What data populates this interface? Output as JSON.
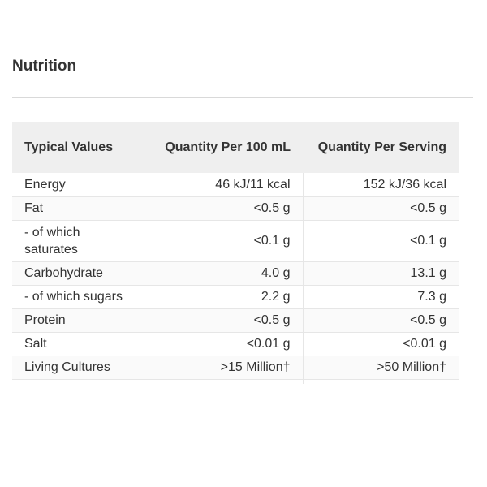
{
  "section": {
    "title": "Nutrition"
  },
  "table": {
    "headers": [
      "Typical Values",
      "Quantity Per 100 mL",
      "Quantity Per Serving"
    ],
    "rows": [
      {
        "name": "Energy",
        "per100": "46 kJ/11 kcal",
        "perServing": "152 kJ/36 kcal"
      },
      {
        "name": "Fat",
        "per100": "<0.5 g",
        "perServing": "<0.5 g"
      },
      {
        "name": "- of which saturates",
        "per100": "<0.1 g",
        "perServing": "<0.1 g"
      },
      {
        "name": "Carbohydrate",
        "per100": "4.0 g",
        "perServing": "13.1 g"
      },
      {
        "name": "- of which sugars",
        "per100": "2.2 g",
        "perServing": "7.3 g"
      },
      {
        "name": "Protein",
        "per100": "<0.5 g",
        "perServing": "<0.5 g"
      },
      {
        "name": "Salt",
        "per100": "<0.01 g",
        "perServing": "<0.01 g"
      },
      {
        "name": "Living Cultures",
        "per100": ">15 Million†",
        "perServing": ">50 Million†"
      }
    ]
  },
  "colors": {
    "header_background": "#efefef",
    "text": "#333333",
    "divider": "#d9d9d9",
    "row_border": "#e6e6e6"
  }
}
